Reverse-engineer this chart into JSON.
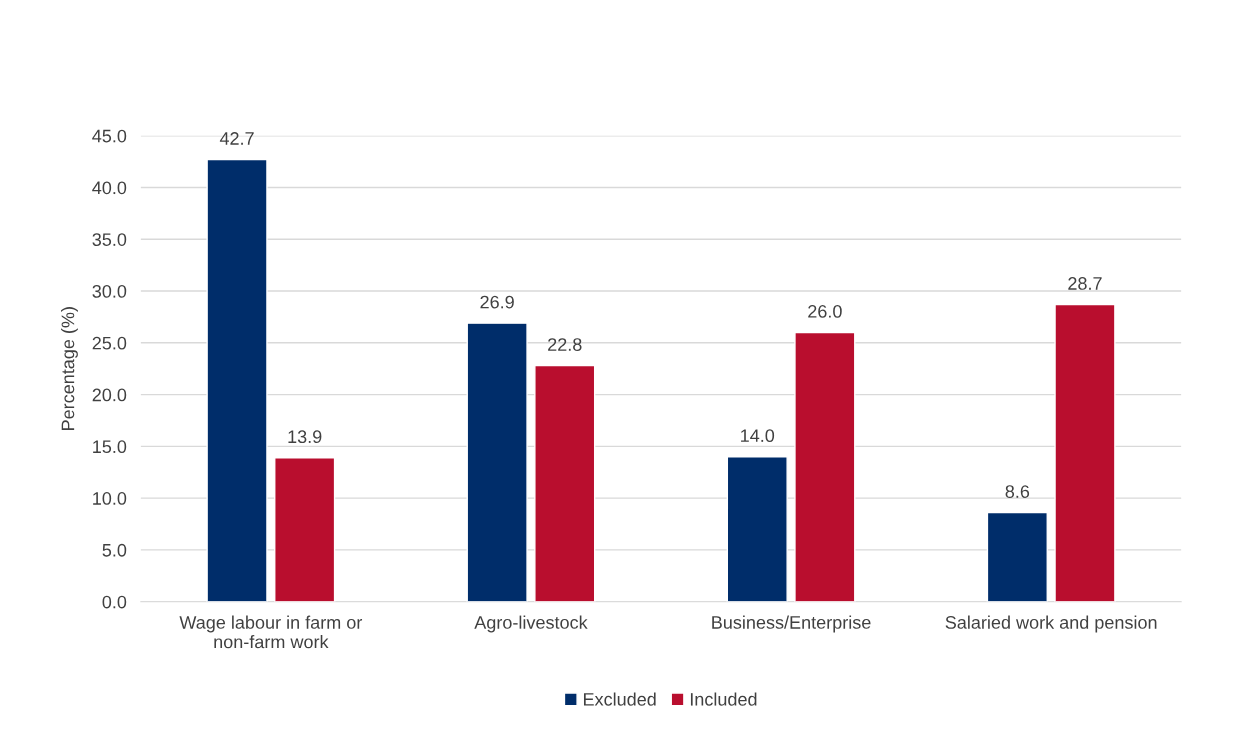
{
  "chart_data": {
    "type": "bar",
    "ylabel": "Percentage (%)",
    "categories": [
      "Wage labour in farm or non-farm work",
      "Agro-livestock",
      "Business/Enterprise",
      "Salaried work and pension"
    ],
    "series": [
      {
        "name": "Excluded",
        "color": "#002d6a",
        "values": [
          42.7,
          26.9,
          14.0,
          8.6
        ],
        "value_labels": [
          "42.7",
          "26.9",
          "14.0",
          "8.6"
        ]
      },
      {
        "name": "Included",
        "color": "#b90e2e",
        "values": [
          13.9,
          22.8,
          26.0,
          28.7
        ],
        "value_labels": [
          "13.9",
          "22.8",
          "26.0",
          "28.7"
        ]
      }
    ],
    "ylim": [
      0,
      45
    ],
    "yticks": [
      {
        "value": 0,
        "label": "0.0"
      },
      {
        "value": 5,
        "label": "5.0"
      },
      {
        "value": 10,
        "label": "10.0"
      },
      {
        "value": 15,
        "label": "15.0"
      },
      {
        "value": 20,
        "label": "20.0"
      },
      {
        "value": 25,
        "label": "25.0"
      },
      {
        "value": 30,
        "label": "30.0"
      },
      {
        "value": 35,
        "label": "35.0"
      },
      {
        "value": 40,
        "label": "40.0"
      },
      {
        "value": 45,
        "label": "45.0"
      }
    ],
    "grid": "y",
    "legend": "bottom"
  }
}
